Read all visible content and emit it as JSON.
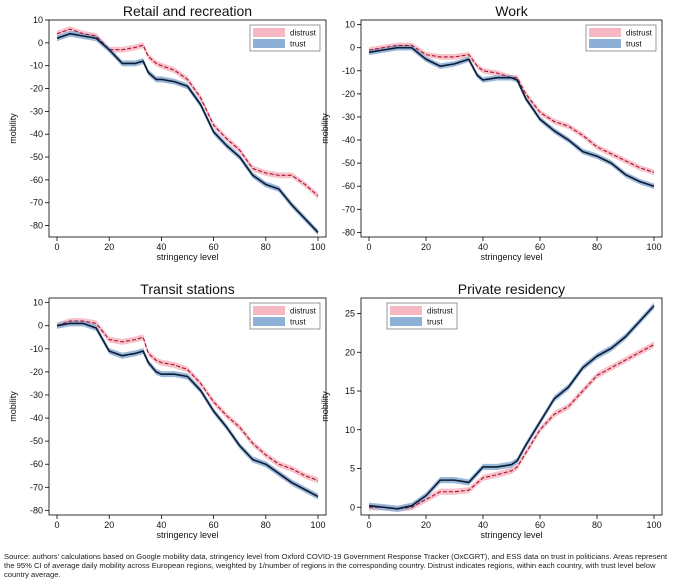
{
  "source_note": "Source: authors' calculations based on Google mobility data, stringency level from Oxford COVID-19 Government Response Tracker (OxCGRT), and ESS data on trust in politicians. Areas represent the 95% CI of average daily mobility across European regions, weighted by 1/number of regions in the corresponding country. Distrust indicates regions, within each country, with trust level below country average.",
  "colors": {
    "distrust_line": "#b01030",
    "distrust_band": "#f6b8c2",
    "trust_line": "#0c1a33",
    "trust_band": "#8fb0d6"
  },
  "chart_data": [
    {
      "type": "line",
      "title": "Retail and recreation",
      "xlabel": "stringency level",
      "ylabel": "mobility",
      "xlim": [
        0,
        100
      ],
      "ylim": [
        -85,
        10
      ],
      "xticks": [
        0,
        20,
        40,
        60,
        80,
        100
      ],
      "yticks": [
        10,
        0,
        -10,
        -20,
        -30,
        -40,
        -50,
        -60,
        -70,
        -80
      ],
      "legend_position": "top-right",
      "band_half_width": 1.3,
      "series": [
        {
          "name": "distrust",
          "style": "dashed",
          "x": [
            0,
            5,
            10,
            15,
            20,
            25,
            30,
            33,
            35,
            38,
            40,
            45,
            50,
            55,
            60,
            65,
            70,
            75,
            80,
            85,
            90,
            95,
            100
          ],
          "y": [
            4,
            6,
            4,
            3,
            -3,
            -3,
            -2,
            -1,
            -6,
            -9,
            -10,
            -12,
            -16,
            -24,
            -36,
            -42,
            -47,
            -55,
            -57,
            -58,
            -58,
            -62,
            -67
          ]
        },
        {
          "name": "trust",
          "style": "solid",
          "x": [
            0,
            5,
            10,
            15,
            20,
            25,
            30,
            33,
            35,
            38,
            40,
            45,
            50,
            55,
            60,
            65,
            70,
            75,
            80,
            85,
            90,
            95,
            100
          ],
          "y": [
            2,
            4,
            3,
            2,
            -3,
            -9,
            -9,
            -8,
            -13,
            -16,
            -16,
            -17,
            -19,
            -27,
            -39,
            -45,
            -50,
            -58,
            -62,
            -64,
            -71,
            -77,
            -83
          ]
        }
      ]
    },
    {
      "type": "line",
      "title": "Work",
      "xlabel": "stringency level",
      "ylabel": "mobility",
      "xlim": [
        0,
        100
      ],
      "ylim": [
        -82,
        12
      ],
      "xticks": [
        0,
        20,
        40,
        60,
        80,
        100
      ],
      "yticks": [
        10,
        0,
        -10,
        -20,
        -30,
        -40,
        -50,
        -60,
        -70,
        -80
      ],
      "legend_position": "top-right",
      "band_half_width": 1.2,
      "series": [
        {
          "name": "distrust",
          "style": "dashed",
          "x": [
            0,
            5,
            10,
            15,
            20,
            25,
            30,
            35,
            38,
            40,
            45,
            50,
            52,
            55,
            60,
            65,
            70,
            75,
            80,
            85,
            90,
            95,
            100
          ],
          "y": [
            -1,
            0,
            1,
            1,
            -3,
            -4,
            -4,
            -3,
            -8,
            -10,
            -11,
            -13,
            -13,
            -20,
            -28,
            -32,
            -34,
            -38,
            -43,
            -46,
            -49,
            -52,
            -54
          ]
        },
        {
          "name": "trust",
          "style": "solid",
          "x": [
            0,
            5,
            10,
            15,
            20,
            25,
            30,
            35,
            38,
            40,
            45,
            50,
            52,
            55,
            60,
            65,
            70,
            75,
            80,
            85,
            90,
            95,
            100
          ],
          "y": [
            -2,
            -1,
            0,
            0,
            -5,
            -8,
            -7,
            -5,
            -12,
            -14,
            -13,
            -13,
            -14,
            -22,
            -31,
            -36,
            -40,
            -45,
            -47,
            -50,
            -55,
            -58,
            -60
          ]
        }
      ]
    },
    {
      "type": "line",
      "title": "Transit stations",
      "xlabel": "stringency level",
      "ylabel": "mobility",
      "xlim": [
        0,
        100
      ],
      "ylim": [
        -82,
        12
      ],
      "xticks": [
        0,
        20,
        40,
        60,
        80,
        100
      ],
      "yticks": [
        10,
        0,
        -10,
        -20,
        -30,
        -40,
        -50,
        -60,
        -70,
        -80
      ],
      "legend_position": "top-right",
      "band_half_width": 1.3,
      "series": [
        {
          "name": "distrust",
          "style": "dashed",
          "x": [
            0,
            5,
            10,
            15,
            20,
            25,
            30,
            33,
            35,
            38,
            40,
            45,
            50,
            55,
            60,
            65,
            70,
            75,
            80,
            85,
            90,
            95,
            100
          ],
          "y": [
            0,
            2,
            2,
            1,
            -6,
            -7,
            -6,
            -5,
            -12,
            -15,
            -16,
            -17,
            -19,
            -25,
            -33,
            -39,
            -44,
            -51,
            -56,
            -60,
            -62,
            -65,
            -67
          ]
        },
        {
          "name": "trust",
          "style": "solid",
          "x": [
            0,
            5,
            10,
            15,
            20,
            25,
            30,
            33,
            35,
            38,
            40,
            45,
            50,
            55,
            60,
            65,
            70,
            75,
            80,
            85,
            90,
            95,
            100
          ],
          "y": [
            0,
            1,
            1,
            -1,
            -11,
            -13,
            -12,
            -11,
            -16,
            -20,
            -21,
            -21,
            -22,
            -28,
            -37,
            -44,
            -52,
            -58,
            -60,
            -64,
            -68,
            -71,
            -74
          ]
        }
      ]
    },
    {
      "type": "line",
      "title": "Private residency",
      "xlabel": "stringency level",
      "ylabel": "mobility",
      "xlim": [
        0,
        100
      ],
      "ylim": [
        -1,
        27
      ],
      "xticks": [
        0,
        20,
        40,
        60,
        80,
        100
      ],
      "yticks": [
        0,
        5,
        10,
        15,
        20,
        25
      ],
      "legend_position": "top-left",
      "band_half_width": 0.4,
      "series": [
        {
          "name": "distrust",
          "style": "dashed",
          "x": [
            0,
            5,
            10,
            15,
            20,
            25,
            30,
            35,
            40,
            45,
            50,
            52,
            55,
            60,
            65,
            70,
            75,
            80,
            85,
            90,
            95,
            100
          ],
          "y": [
            0,
            0,
            -0.2,
            0,
            1,
            2,
            2,
            2.2,
            3.8,
            4.2,
            4.7,
            5.2,
            7,
            10,
            12,
            13,
            15,
            17,
            18,
            19,
            20,
            21
          ]
        },
        {
          "name": "trust",
          "style": "solid",
          "x": [
            0,
            5,
            10,
            15,
            20,
            25,
            30,
            35,
            40,
            45,
            50,
            52,
            55,
            60,
            65,
            70,
            75,
            80,
            85,
            90,
            95,
            100
          ],
          "y": [
            0.2,
            0,
            -0.2,
            0.2,
            1.5,
            3.5,
            3.5,
            3.2,
            5.2,
            5.2,
            5.5,
            6,
            8,
            11,
            14,
            15.5,
            18,
            19.5,
            20.5,
            22,
            24,
            26
          ]
        }
      ]
    }
  ]
}
